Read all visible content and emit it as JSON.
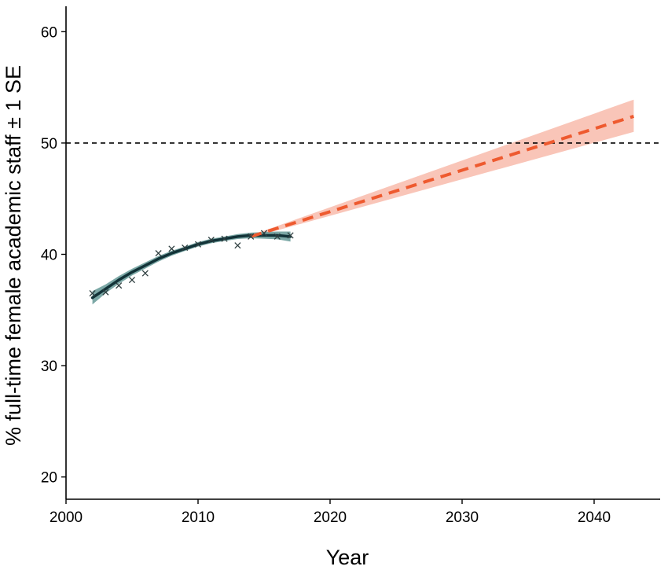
{
  "chart_data": {
    "type": "line",
    "xlabel": "Year",
    "ylabel": "% full-time female academic staff ± 1 SE",
    "xlim": [
      2000,
      2045
    ],
    "ylim": [
      18,
      62
    ],
    "x_ticks": [
      2000,
      2010,
      2020,
      2030,
      2040
    ],
    "y_ticks": [
      20,
      30,
      40,
      50,
      60
    ],
    "reference_line": {
      "y": 50,
      "style": "dashed",
      "color": "#000000"
    },
    "observed": {
      "marker": "x",
      "color": "#2f3f40",
      "x": [
        2002,
        2003,
        2004,
        2005,
        2006,
        2007,
        2008,
        2009,
        2010,
        2011,
        2012,
        2013,
        2014,
        2015,
        2016,
        2017
      ],
      "y": [
        36.5,
        36.6,
        37.2,
        37.7,
        38.3,
        40.1,
        40.5,
        40.6,
        40.9,
        41.3,
        41.4,
        40.8,
        41.6,
        41.9,
        41.6,
        41.7
      ]
    },
    "fit": {
      "color": "#123338",
      "band_color": "#6e9e9c",
      "x": [
        2002,
        2003,
        2004,
        2005,
        2006,
        2007,
        2008,
        2009,
        2010,
        2011,
        2012,
        2013,
        2014,
        2015,
        2016,
        2017
      ],
      "y": [
        36.1,
        36.9,
        37.7,
        38.4,
        39.0,
        39.6,
        40.1,
        40.5,
        40.9,
        41.2,
        41.4,
        41.6,
        41.7,
        41.7,
        41.7,
        41.6
      ],
      "se": [
        0.6,
        0.4,
        0.35,
        0.3,
        0.28,
        0.25,
        0.22,
        0.2,
        0.2,
        0.2,
        0.2,
        0.22,
        0.25,
        0.3,
        0.35,
        0.45
      ]
    },
    "projection": {
      "color": "#ee5a2f",
      "band_color": "#f8bfb0",
      "style": "dashed",
      "x": [
        2014,
        2043
      ],
      "y": [
        41.6,
        52.4
      ],
      "upper": [
        41.7,
        53.9
      ],
      "lower": [
        41.5,
        51.0
      ]
    },
    "grid": false,
    "legend": "none"
  }
}
